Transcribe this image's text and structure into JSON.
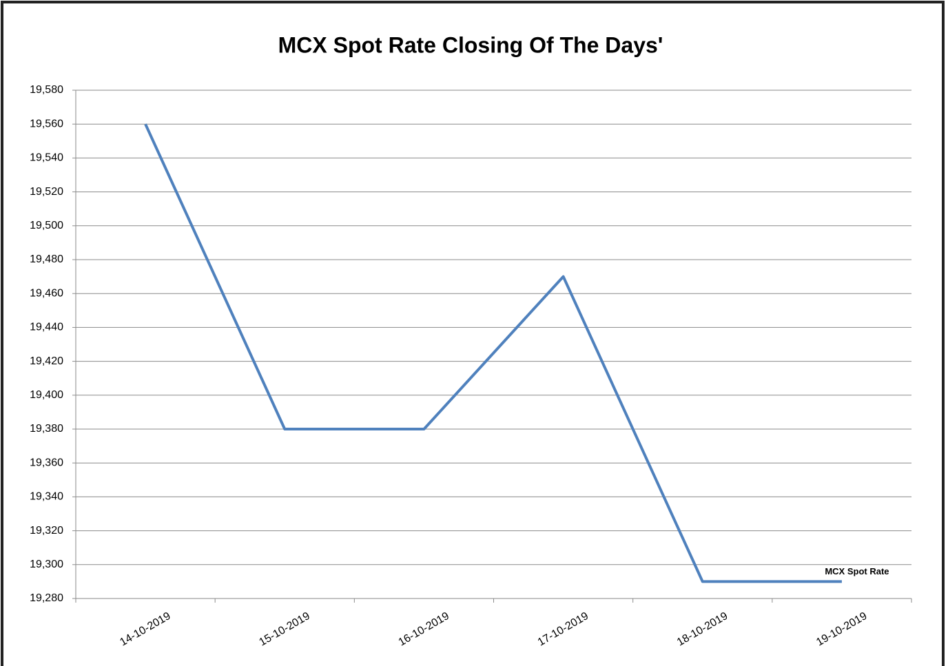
{
  "chart_data": {
    "type": "line",
    "title": "MCX Spot Rate Closing Of The Days'",
    "categories": [
      "14-10-2019",
      "15-10-2019",
      "16-10-2019",
      "17-10-2019",
      "18-10-2019",
      "19-10-2019"
    ],
    "series": [
      {
        "name": "MCX Spot Rate",
        "color": "#4f81bd",
        "values": [
          19560,
          19380,
          19380,
          19470,
          19290,
          19290
        ]
      }
    ],
    "ylim": [
      19280,
      19580
    ],
    "yticks": [
      {
        "value": 19280,
        "label": "19,280"
      },
      {
        "value": 19300,
        "label": "19,300"
      },
      {
        "value": 19320,
        "label": "19,320"
      },
      {
        "value": 19340,
        "label": "19,340"
      },
      {
        "value": 19360,
        "label": "19,360"
      },
      {
        "value": 19380,
        "label": "19,380"
      },
      {
        "value": 19400,
        "label": "19,400"
      },
      {
        "value": 19420,
        "label": "19,420"
      },
      {
        "value": 19440,
        "label": "19,440"
      },
      {
        "value": 19460,
        "label": "19,460"
      },
      {
        "value": 19480,
        "label": "19,480"
      },
      {
        "value": 19500,
        "label": "19,500"
      },
      {
        "value": 19520,
        "label": "19,520"
      },
      {
        "value": 19540,
        "label": "19,540"
      },
      {
        "value": 19560,
        "label": "19,560"
      },
      {
        "value": 19580,
        "label": "19,580"
      }
    ],
    "grid": true
  }
}
